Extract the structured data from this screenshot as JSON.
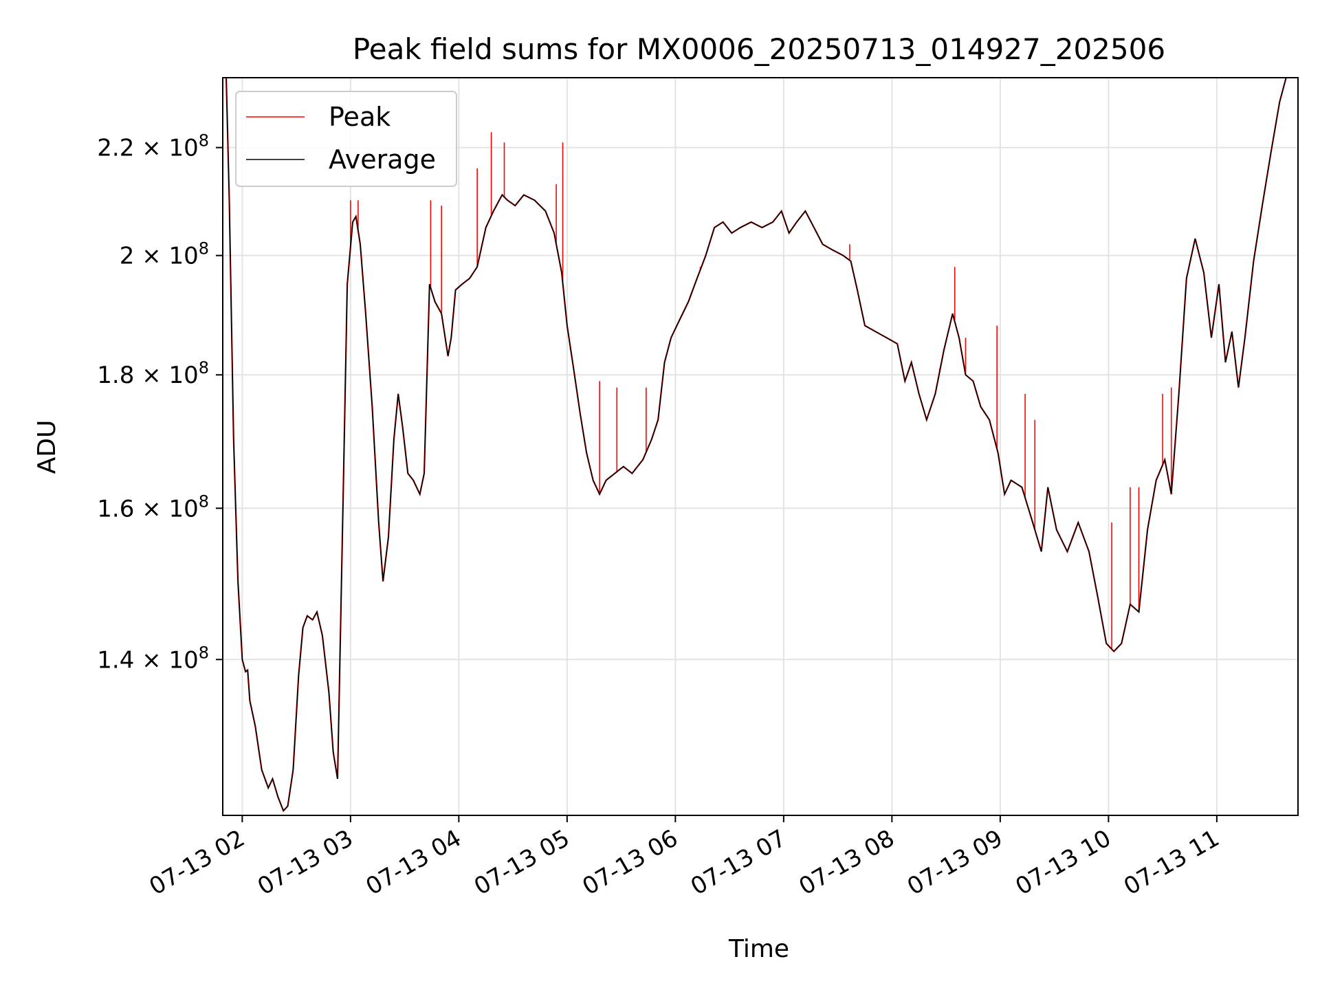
{
  "chart_data": {
    "type": "line",
    "title": "Peak field sums for MX0006_20250713_014927_202506",
    "xlabel": "Time",
    "ylabel": "ADU",
    "y_scale": "log",
    "grid": true,
    "legend_position": "top-left",
    "x_unit": "hours on 2025-07-13",
    "xlim": [
      1.82,
      11.75
    ],
    "ylim": [
      122000000.0,
      234000000.0
    ],
    "x_ticks": [
      {
        "value": 2,
        "label": "07-13 02"
      },
      {
        "value": 3,
        "label": "07-13 03"
      },
      {
        "value": 4,
        "label": "07-13 04"
      },
      {
        "value": 5,
        "label": "07-13 05"
      },
      {
        "value": 6,
        "label": "07-13 06"
      },
      {
        "value": 7,
        "label": "07-13 07"
      },
      {
        "value": 8,
        "label": "07-13 08"
      },
      {
        "value": 9,
        "label": "07-13 09"
      },
      {
        "value": 10,
        "label": "07-13 10"
      },
      {
        "value": 11,
        "label": "07-13 11"
      }
    ],
    "y_ticks": [
      {
        "value": 140000000.0,
        "mantissa": "1.4",
        "label": "1.4 × 10⁸"
      },
      {
        "value": 160000000.0,
        "mantissa": "1.6",
        "label": "1.6 × 10⁸"
      },
      {
        "value": 180000000.0,
        "mantissa": "1.8",
        "label": "1.8 × 10⁸"
      },
      {
        "value": 200000000.0,
        "mantissa": "2",
        "label": "2 × 10⁸"
      },
      {
        "value": 220000000.0,
        "mantissa": "2.2",
        "label": "2.2 × 10⁸"
      }
    ],
    "series": [
      {
        "name": "Average",
        "color": "#000000",
        "points": [
          [
            1.85,
            236000000.0
          ],
          [
            1.88,
            210000000.0
          ],
          [
            1.92,
            170000000.0
          ],
          [
            1.96,
            150000000.0
          ],
          [
            2.0,
            140000000.0
          ],
          [
            2.03,
            138500000.0
          ],
          [
            2.05,
            138700000.0
          ],
          [
            2.07,
            135000000.0
          ],
          [
            2.12,
            132000000.0
          ],
          [
            2.18,
            127000000.0
          ],
          [
            2.24,
            125000000.0
          ],
          [
            2.28,
            126000000.0
          ],
          [
            2.33,
            124000000.0
          ],
          [
            2.38,
            122500000.0
          ],
          [
            2.42,
            123000000.0
          ],
          [
            2.47,
            127000000.0
          ],
          [
            2.52,
            138000000.0
          ],
          [
            2.56,
            144000000.0
          ],
          [
            2.6,
            145500000.0
          ],
          [
            2.65,
            145000000.0
          ],
          [
            2.69,
            146000000.0
          ],
          [
            2.74,
            143000000.0
          ],
          [
            2.8,
            136000000.0
          ],
          [
            2.84,
            129000000.0
          ],
          [
            2.88,
            126000000.0
          ],
          [
            2.93,
            160000000.0
          ],
          [
            2.97,
            195000000.0
          ],
          [
            3.02,
            206000000.0
          ],
          [
            3.05,
            207000000.0
          ],
          [
            3.09,
            202000000.0
          ],
          [
            3.14,
            190000000.0
          ],
          [
            3.2,
            175000000.0
          ],
          [
            3.26,
            158000000.0
          ],
          [
            3.3,
            150000000.0
          ],
          [
            3.35,
            156000000.0
          ],
          [
            3.4,
            170000000.0
          ],
          [
            3.44,
            177000000.0
          ],
          [
            3.48,
            172000000.0
          ],
          [
            3.53,
            165000000.0
          ],
          [
            3.58,
            164000000.0
          ],
          [
            3.64,
            162000000.0
          ],
          [
            3.68,
            165000000.0
          ],
          [
            3.73,
            195000000.0
          ],
          [
            3.78,
            192000000.0
          ],
          [
            3.84,
            190000000.0
          ],
          [
            3.9,
            183000000.0
          ],
          [
            3.93,
            186000000.0
          ],
          [
            3.97,
            194000000.0
          ],
          [
            4.03,
            195000000.0
          ],
          [
            4.1,
            196000000.0
          ],
          [
            4.17,
            198000000.0
          ],
          [
            4.25,
            205000000.0
          ],
          [
            4.32,
            208000000.0
          ],
          [
            4.4,
            211000000.0
          ],
          [
            4.45,
            210000000.0
          ],
          [
            4.52,
            209000000.0
          ],
          [
            4.6,
            211000000.0
          ],
          [
            4.7,
            210000000.0
          ],
          [
            4.8,
            208000000.0
          ],
          [
            4.88,
            204000000.0
          ],
          [
            4.95,
            197000000.0
          ],
          [
            5.0,
            188000000.0
          ],
          [
            5.06,
            181000000.0
          ],
          [
            5.12,
            174000000.0
          ],
          [
            5.18,
            168000000.0
          ],
          [
            5.24,
            164000000.0
          ],
          [
            5.3,
            162000000.0
          ],
          [
            5.36,
            164000000.0
          ],
          [
            5.44,
            165000000.0
          ],
          [
            5.52,
            166000000.0
          ],
          [
            5.6,
            165000000.0
          ],
          [
            5.7,
            167000000.0
          ],
          [
            5.78,
            170000000.0
          ],
          [
            5.84,
            173000000.0
          ],
          [
            5.9,
            182000000.0
          ],
          [
            5.96,
            186000000.0
          ],
          [
            6.04,
            189000000.0
          ],
          [
            6.12,
            192000000.0
          ],
          [
            6.2,
            196000000.0
          ],
          [
            6.28,
            200000000.0
          ],
          [
            6.36,
            205000000.0
          ],
          [
            6.44,
            206000000.0
          ],
          [
            6.52,
            204000000.0
          ],
          [
            6.6,
            205000000.0
          ],
          [
            6.7,
            206000000.0
          ],
          [
            6.8,
            205000000.0
          ],
          [
            6.9,
            206000000.0
          ],
          [
            6.98,
            208000000.0
          ],
          [
            7.05,
            204000000.0
          ],
          [
            7.12,
            206000000.0
          ],
          [
            7.2,
            208000000.0
          ],
          [
            7.28,
            205000000.0
          ],
          [
            7.36,
            202000000.0
          ],
          [
            7.45,
            201000000.0
          ],
          [
            7.55,
            200000000.0
          ],
          [
            7.62,
            199000000.0
          ],
          [
            7.68,
            194000000.0
          ],
          [
            7.75,
            188000000.0
          ],
          [
            7.85,
            187000000.0
          ],
          [
            7.95,
            186000000.0
          ],
          [
            8.05,
            185000000.0
          ],
          [
            8.12,
            179000000.0
          ],
          [
            8.18,
            182000000.0
          ],
          [
            8.25,
            177000000.0
          ],
          [
            8.32,
            173000000.0
          ],
          [
            8.4,
            177000000.0
          ],
          [
            8.48,
            184000000.0
          ],
          [
            8.56,
            190000000.0
          ],
          [
            8.62,
            186000000.0
          ],
          [
            8.68,
            180000000.0
          ],
          [
            8.75,
            179000000.0
          ],
          [
            8.82,
            175000000.0
          ],
          [
            8.9,
            173000000.0
          ],
          [
            8.98,
            168000000.0
          ],
          [
            9.04,
            162000000.0
          ],
          [
            9.1,
            164000000.0
          ],
          [
            9.2,
            163000000.0
          ],
          [
            9.3,
            158000000.0
          ],
          [
            9.38,
            154000000.0
          ],
          [
            9.44,
            163000000.0
          ],
          [
            9.52,
            157000000.0
          ],
          [
            9.62,
            154000000.0
          ],
          [
            9.72,
            158000000.0
          ],
          [
            9.82,
            154000000.0
          ],
          [
            9.9,
            148000000.0
          ],
          [
            9.98,
            142000000.0
          ],
          [
            10.05,
            141000000.0
          ],
          [
            10.12,
            142000000.0
          ],
          [
            10.2,
            147000000.0
          ],
          [
            10.28,
            146000000.0
          ],
          [
            10.36,
            157000000.0
          ],
          [
            10.44,
            164000000.0
          ],
          [
            10.52,
            167000000.0
          ],
          [
            10.58,
            162000000.0
          ],
          [
            10.65,
            177000000.0
          ],
          [
            10.72,
            196000000.0
          ],
          [
            10.8,
            203000000.0
          ],
          [
            10.88,
            197000000.0
          ],
          [
            10.95,
            186000000.0
          ],
          [
            11.02,
            195000000.0
          ],
          [
            11.08,
            182000000.0
          ],
          [
            11.14,
            187000000.0
          ],
          [
            11.2,
            178000000.0
          ],
          [
            11.26,
            186000000.0
          ],
          [
            11.34,
            199000000.0
          ],
          [
            11.42,
            209000000.0
          ],
          [
            11.5,
            219000000.0
          ],
          [
            11.58,
            229000000.0
          ],
          [
            11.64,
            234000000.0
          ],
          [
            11.74,
            236000000.0
          ]
        ]
      },
      {
        "name": "Peak",
        "color": "#ff0000",
        "spikes": [
          [
            3.0,
            210000000.0
          ],
          [
            3.07,
            210000000.0
          ],
          [
            3.74,
            210000000.0
          ],
          [
            3.84,
            209000000.0
          ],
          [
            4.17,
            216000000.0
          ],
          [
            4.3,
            223000000.0
          ],
          [
            4.42,
            221000000.0
          ],
          [
            4.9,
            213000000.0
          ],
          [
            4.96,
            221000000.0
          ],
          [
            5.03,
            184000000.0
          ],
          [
            5.3,
            179000000.0
          ],
          [
            5.46,
            178000000.0
          ],
          [
            5.73,
            178000000.0
          ],
          [
            6.23,
            198000000.0
          ],
          [
            7.61,
            202000000.0
          ],
          [
            8.44,
            181000000.0
          ],
          [
            8.58,
            198000000.0
          ],
          [
            8.68,
            186000000.0
          ],
          [
            8.97,
            188000000.0
          ],
          [
            9.23,
            177000000.0
          ],
          [
            9.32,
            173000000.0
          ],
          [
            10.03,
            158000000.0
          ],
          [
            10.2,
            163000000.0
          ],
          [
            10.28,
            163000000.0
          ],
          [
            10.5,
            177000000.0
          ],
          [
            10.58,
            178000000.0
          ]
        ]
      }
    ]
  }
}
